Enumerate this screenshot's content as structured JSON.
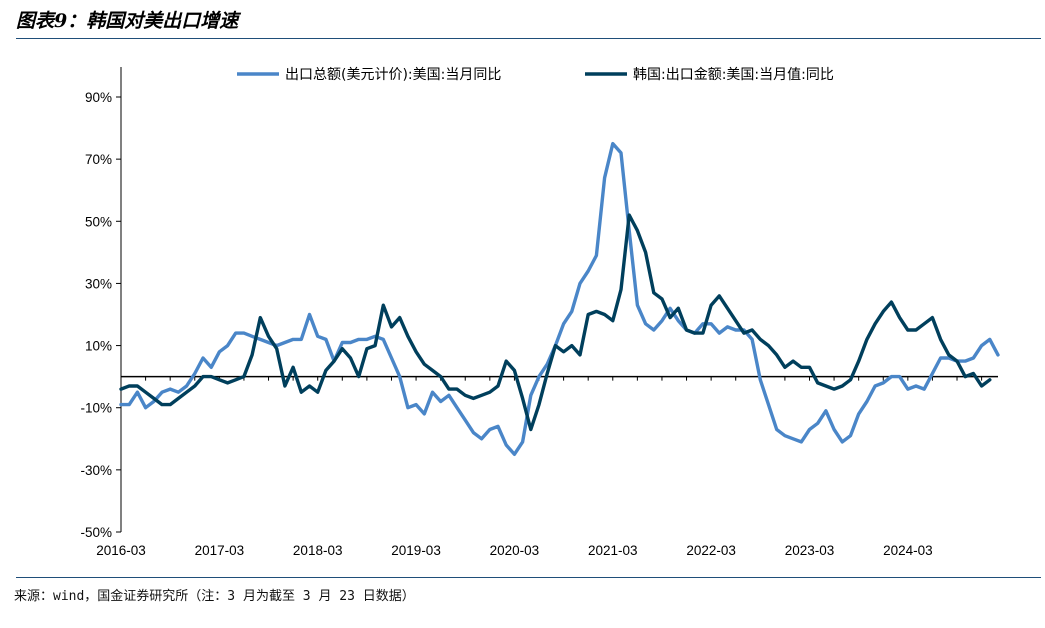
{
  "header": {
    "title": "图表9：韩国对美出口增速"
  },
  "footer": {
    "source": "来源：wind，国金证券研究所（注：3 月为截至 3 月 23 日数据）"
  },
  "colors": {
    "series1": "#4a86c8",
    "series2": "#003f5c",
    "rule": "#1f4e79",
    "axis": "#000000"
  },
  "chart_data": {
    "type": "line",
    "ylim": [
      -50,
      90
    ],
    "y_ticks": [
      90,
      70,
      50,
      30,
      10,
      -10,
      -30,
      -50
    ],
    "y_tick_labels": [
      "90%",
      "70%",
      "50%",
      "30%",
      "10%",
      "-10%",
      "-30%",
      "-50%"
    ],
    "x_start": "2016-03",
    "x_tick_labels": [
      "2016-03",
      "2017-03",
      "2018-03",
      "2019-03",
      "2020-03",
      "2021-03",
      "2022-03",
      "2023-03",
      "2024-03"
    ],
    "grid": false,
    "legend_position": "top",
    "series": [
      {
        "name": "出口总额(美元计价):美国:当月同比",
        "color": "#4a86c8",
        "values": [
          -9,
          -9,
          -5,
          -10,
          -8,
          -5,
          -4,
          -5,
          -3,
          1,
          6,
          3,
          8,
          10,
          14,
          14,
          13,
          12,
          11,
          10,
          11,
          12,
          12,
          20,
          13,
          12,
          5,
          11,
          11,
          12,
          12,
          13,
          12,
          6,
          0,
          -10,
          -9,
          -12,
          -5,
          -8,
          -6,
          -10,
          -14,
          -18,
          -20,
          -17,
          -16,
          -22,
          -25,
          -21,
          -6,
          0,
          4,
          10,
          17,
          21,
          30,
          34,
          39,
          64,
          75,
          72,
          47,
          23,
          17,
          15,
          18,
          22,
          18,
          15,
          14,
          17,
          17,
          14,
          16,
          15,
          15,
          12,
          -1,
          -9,
          -17,
          -19,
          -20,
          -21,
          -17,
          -15,
          -11,
          -17,
          -21,
          -19,
          -12,
          -8,
          -3,
          -2,
          0,
          0,
          -4,
          -3,
          -4,
          1,
          6,
          6,
          5,
          5,
          6,
          10,
          12,
          7
        ]
      },
      {
        "name": "韩国:出口金额:美国:当月值:同比",
        "color": "#003f5c",
        "values": [
          -4,
          -3,
          -3,
          -5,
          -7,
          -9,
          -9,
          -7,
          -5,
          -3,
          0,
          0,
          -1,
          -2,
          -1,
          0,
          7,
          19,
          13,
          9,
          -3,
          3,
          -5,
          -3,
          -5,
          2,
          5,
          9,
          6,
          0,
          9,
          10,
          23,
          16,
          19,
          13,
          8,
          4,
          2,
          0,
          -4,
          -4,
          -6,
          -7,
          -6,
          -5,
          -3,
          5,
          2,
          -7,
          -17,
          -9,
          1,
          10,
          8,
          10,
          7,
          20,
          21,
          20,
          18,
          28,
          52,
          47,
          40,
          27,
          25,
          19,
          22,
          15,
          14,
          14,
          23,
          26,
          22,
          18,
          14,
          15,
          12,
          10,
          7,
          3,
          5,
          3,
          3,
          -2,
          -3,
          -4,
          -3,
          -1,
          5,
          12,
          17,
          21,
          24,
          19,
          15,
          15,
          17,
          19,
          12,
          7,
          5,
          0,
          1,
          -3,
          -1
        ]
      }
    ]
  }
}
